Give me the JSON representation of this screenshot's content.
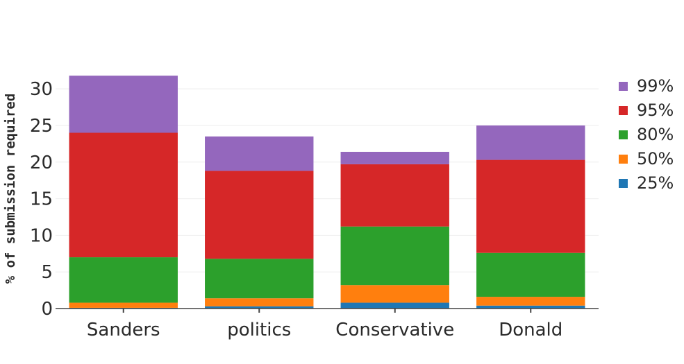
{
  "chart_data": {
    "type": "bar",
    "stacked": true,
    "title": "",
    "xlabel": "",
    "ylabel": "% of submission required",
    "ylim": [
      0,
      32
    ],
    "yticks": [
      0,
      5,
      10,
      15,
      20,
      25,
      30
    ],
    "grid": true,
    "legend_position": "right",
    "categories": [
      "Sanders",
      "politics",
      "Conservative",
      "Donald"
    ],
    "series": [
      {
        "name": "25%",
        "color": "#1f77b4",
        "values": [
          0.1,
          0.3,
          0.8,
          0.4
        ]
      },
      {
        "name": "50%",
        "color": "#ff7f0e",
        "values": [
          0.7,
          1.1,
          2.4,
          1.2
        ]
      },
      {
        "name": "80%",
        "color": "#2ca02c",
        "values": [
          6.2,
          5.4,
          8.0,
          6.0
        ]
      },
      {
        "name": "95%",
        "color": "#d62728",
        "values": [
          17.0,
          12.0,
          8.5,
          12.7
        ]
      },
      {
        "name": "99%",
        "color": "#9467bd",
        "values": [
          7.8,
          4.7,
          1.7,
          4.7
        ]
      }
    ]
  }
}
